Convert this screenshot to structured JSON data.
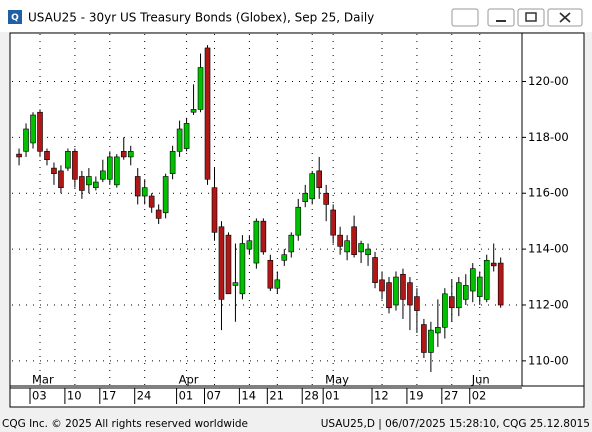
{
  "window_title": "USAU25 - 30yr US Treasury Bonds (Globex), Sep 25, Daily",
  "footer": {
    "left": "CQG Inc. © 2025 All rights reserved worldwide",
    "right": "USAU25,D | 06/07/2025 15:28:10, CQG 25.12.8015"
  },
  "chart_data": {
    "type": "candlestick",
    "categories": [
      null,
      null,
      null,
      "03",
      null,
      null,
      null,
      null,
      "10",
      null,
      null,
      null,
      null,
      "17",
      null,
      null,
      null,
      null,
      "24",
      null,
      null,
      null,
      null,
      null,
      "01",
      null,
      null,
      null,
      "07",
      null,
      null,
      null,
      null,
      "14",
      null,
      null,
      null,
      "21",
      null,
      null,
      null,
      null,
      "28",
      null,
      null,
      "01",
      null,
      null,
      null,
      null,
      null,
      null,
      "12",
      null,
      null,
      null,
      null,
      "19",
      null,
      null,
      null,
      null,
      "27",
      null,
      null,
      null,
      "02",
      null,
      null,
      null
    ],
    "months": [
      null,
      null,
      null,
      "Mar",
      null,
      null,
      null,
      null,
      null,
      null,
      null,
      null,
      null,
      null,
      null,
      null,
      null,
      null,
      null,
      null,
      null,
      null,
      null,
      null,
      "Apr",
      null,
      null,
      null,
      null,
      null,
      null,
      null,
      null,
      null,
      null,
      null,
      null,
      null,
      null,
      null,
      null,
      null,
      null,
      null,
      null,
      "May",
      null,
      null,
      null,
      null,
      null,
      null,
      null,
      null,
      null,
      null,
      null,
      null,
      null,
      null,
      null,
      null,
      null,
      null,
      null,
      null,
      "Jun",
      null,
      null,
      null
    ],
    "open": [
      117.4,
      117.5,
      117.8,
      118.9,
      117.5,
      116.9,
      116.8,
      116.9,
      117.5,
      116.6,
      116.3,
      116.2,
      116.5,
      116.5,
      116.3,
      117.5,
      117.3,
      116.6,
      115.9,
      115.9,
      115.4,
      115.3,
      116.7,
      117.5,
      117.6,
      118.9,
      119.0,
      121.2,
      116.2,
      114.8,
      114.5,
      112.7,
      112.4,
      114.0,
      113.5,
      115.0,
      113.6,
      112.6,
      113.6,
      113.9,
      114.5,
      115.7,
      115.8,
      116.8,
      116.0,
      115.4,
      114.5,
      113.9,
      114.8,
      113.9,
      113.8,
      113.7,
      112.9,
      112.8,
      112.0,
      113.1,
      112.8,
      112.3,
      111.3,
      110.3,
      111.0,
      111.2,
      112.3,
      111.9,
      112.2,
      112.5,
      112.3,
      112.2,
      113.5,
      113.5
    ],
    "high": [
      117.6,
      118.5,
      118.9,
      119.0,
      117.6,
      117.1,
      117.0,
      117.6,
      117.6,
      116.8,
      116.9,
      116.6,
      117.2,
      117.5,
      117.4,
      118.0,
      117.7,
      116.9,
      116.5,
      116.0,
      115.6,
      116.7,
      117.7,
      118.6,
      118.7,
      119.9,
      121.0,
      121.3,
      116.9,
      115.0,
      114.6,
      114.2,
      114.5,
      114.5,
      115.1,
      115.1,
      113.8,
      113.2,
      114.0,
      114.6,
      115.8,
      116.3,
      116.8,
      117.3,
      116.3,
      115.6,
      114.8,
      114.5,
      115.2,
      114.3,
      114.2,
      113.9,
      113.2,
      113.0,
      113.2,
      113.3,
      113.0,
      112.6,
      111.5,
      111.4,
      112.2,
      112.6,
      112.9,
      113.0,
      113.1,
      113.5,
      113.2,
      113.8,
      114.2,
      113.7
    ],
    "low": [
      117.0,
      117.3,
      117.6,
      117.3,
      117.0,
      116.3,
      116.0,
      116.8,
      116.2,
      115.8,
      116.0,
      116.1,
      116.4,
      116.3,
      116.2,
      117.2,
      117.0,
      115.6,
      115.6,
      115.3,
      114.9,
      115.1,
      116.5,
      117.3,
      117.5,
      118.8,
      118.9,
      116.3,
      114.3,
      111.1,
      112.4,
      111.4,
      112.2,
      113.8,
      113.3,
      113.8,
      112.5,
      112.4,
      113.4,
      113.7,
      114.3,
      115.5,
      115.6,
      115.8,
      115.0,
      114.2,
      113.8,
      113.6,
      113.7,
      113.5,
      113.4,
      112.6,
      112.2,
      111.7,
      111.8,
      111.5,
      111.1,
      111.0,
      110.1,
      109.6,
      110.5,
      110.8,
      111.4,
      111.6,
      112.0,
      112.1,
      112.0,
      112.1,
      113.2,
      111.9
    ],
    "close": [
      117.3,
      118.3,
      118.8,
      117.5,
      117.2,
      116.7,
      116.2,
      117.5,
      116.5,
      116.1,
      116.6,
      116.4,
      116.8,
      117.3,
      117.3,
      117.3,
      117.5,
      115.9,
      116.2,
      115.5,
      115.1,
      116.6,
      117.5,
      118.3,
      118.5,
      119.0,
      120.5,
      116.5,
      114.6,
      112.2,
      112.4,
      112.8,
      114.2,
      114.3,
      115.0,
      113.9,
      112.6,
      112.9,
      113.8,
      114.5,
      115.5,
      116.0,
      116.7,
      116.2,
      115.6,
      114.5,
      114.1,
      114.3,
      113.8,
      114.2,
      114.0,
      112.8,
      112.5,
      111.9,
      113.0,
      112.2,
      112.0,
      111.8,
      110.3,
      111.1,
      111.2,
      112.4,
      111.9,
      112.8,
      112.7,
      113.3,
      113.0,
      113.6,
      113.4,
      112.0
    ],
    "up_color": "#00c000",
    "down_color": "#b01818",
    "ylim": [
      109.1,
      121.7
    ],
    "yticks": [
      {
        "value": 110,
        "label": "110-00"
      },
      {
        "value": 112,
        "label": "112-00"
      },
      {
        "value": 114,
        "label": "114-00"
      },
      {
        "value": 116,
        "label": "116-00"
      },
      {
        "value": 118,
        "label": "118-00"
      },
      {
        "value": 120,
        "label": "120-00"
      }
    ],
    "grid": true
  }
}
